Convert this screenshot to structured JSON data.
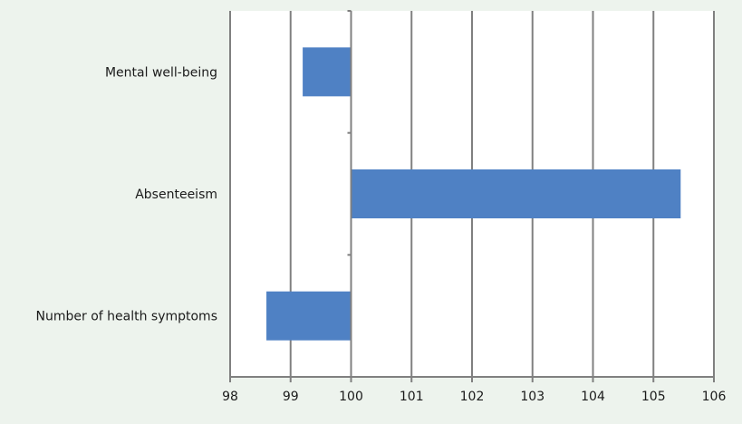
{
  "colors": {
    "background": "#edf3ed",
    "plot_area": "#ffffff",
    "bar": "#4f81c4",
    "grid": "#808080"
  },
  "chart_data": {
    "type": "bar",
    "orientation": "horizontal",
    "title": "",
    "xlabel": "",
    "ylabel": "",
    "categories": [
      "Mental well-being",
      "Absenteeism",
      "Number of health symptoms"
    ],
    "values": [
      99.2,
      105.45,
      98.6
    ],
    "baseline": 100,
    "xlim": [
      98,
      106
    ],
    "xticks": [
      "98",
      "99",
      "100",
      "101",
      "102",
      "103",
      "104",
      "105",
      "106"
    ],
    "grid": "vertical",
    "legend": "none"
  }
}
